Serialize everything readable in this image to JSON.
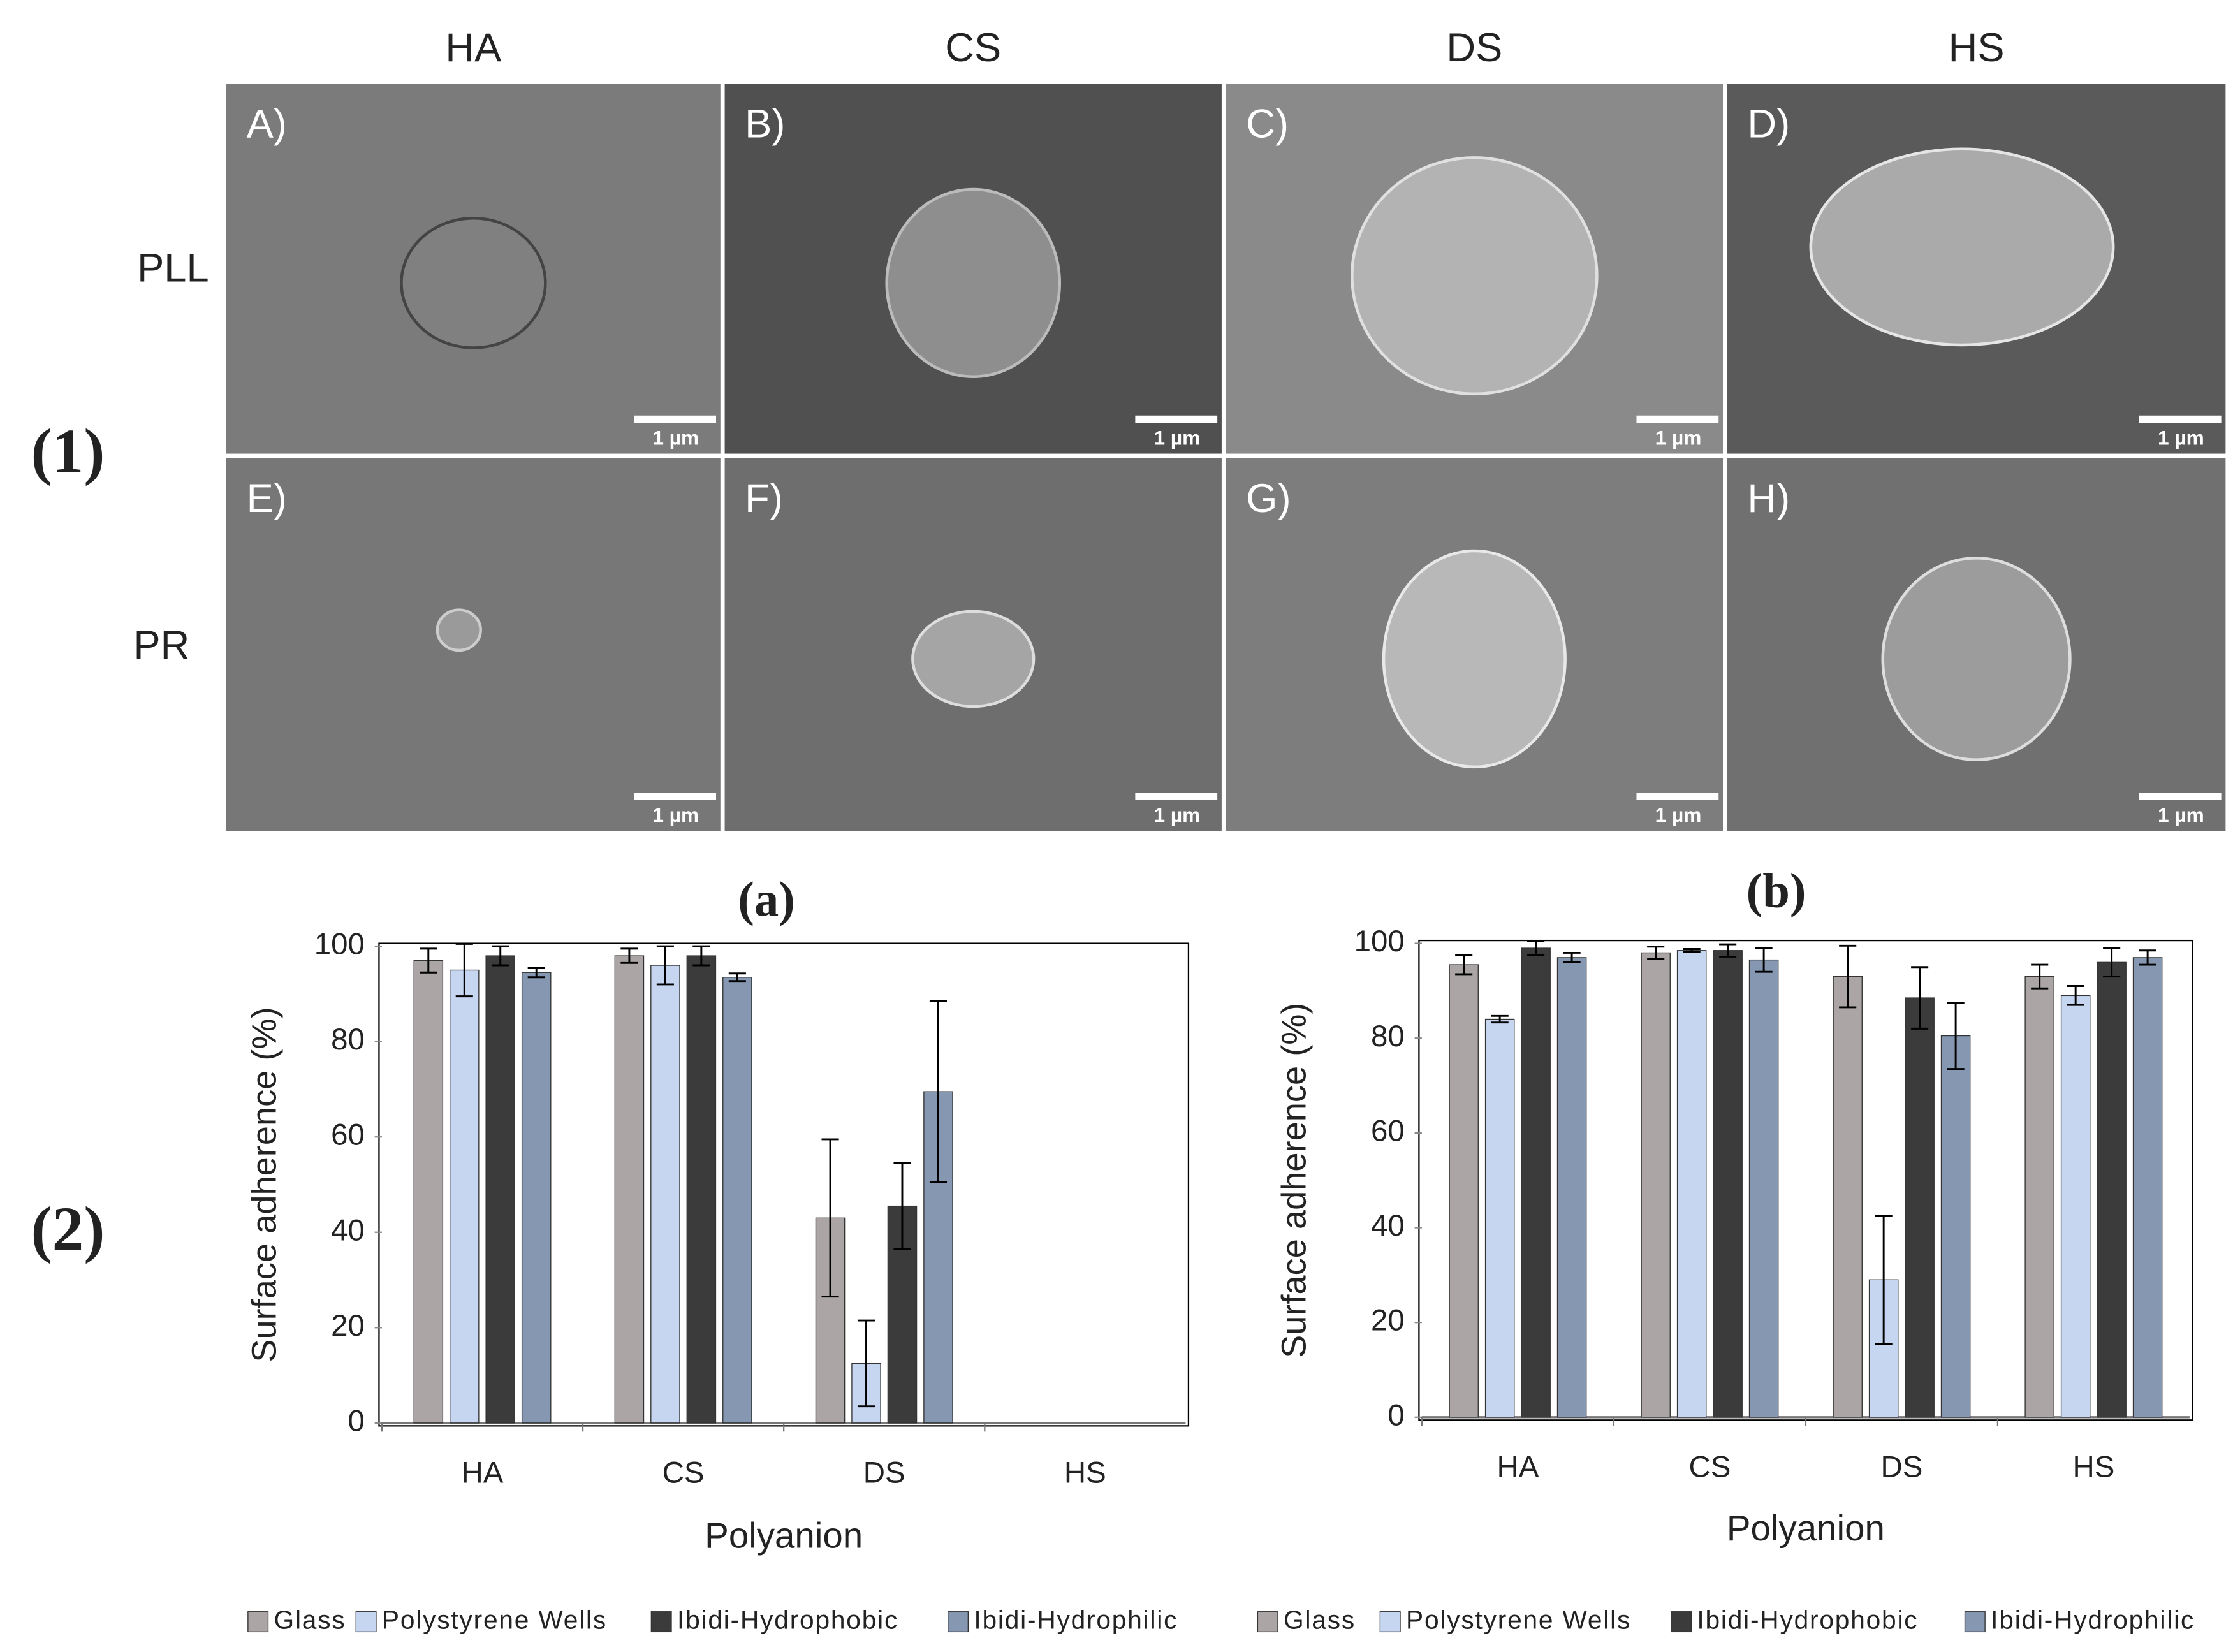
{
  "figure": {
    "labels": [
      "(1)",
      "(2)"
    ],
    "columns": [
      "HA",
      "CS",
      "DS",
      "HS"
    ],
    "rows": [
      "PLL",
      "PR"
    ],
    "panels": [
      "A)",
      "B)",
      "C)",
      "D)",
      "E)",
      "F)",
      "G)",
      "H)"
    ],
    "scale_bars": [
      "1 µm",
      "1 µm",
      "1 µm",
      "1 µm",
      "1 µm",
      "1 µm",
      "1 µm",
      "1 µm"
    ]
  },
  "chart_data": [
    {
      "type": "bar",
      "title": "(a)",
      "x_label": "Polyanion",
      "y_label": "Surface adherence (%)",
      "categories": [
        "HA",
        "CS",
        "DS",
        "HS"
      ],
      "ylim": [
        0,
        100
      ],
      "yticks": [
        0,
        20,
        40,
        60,
        80,
        100
      ],
      "legend": "bottom",
      "series": [
        {
          "name": "Glass",
          "color": "#aba5a5",
          "values": [
            97,
            98,
            43,
            null
          ],
          "errors": [
            2.5,
            1.5,
            16.5,
            null
          ]
        },
        {
          "name": "Polystyrene Wells",
          "color": "#c6d6f1",
          "values": [
            95,
            96,
            12.5,
            null
          ],
          "errors": [
            5.5,
            4,
            9,
            null
          ]
        },
        {
          "name": "Ibidi-Hydrophobic",
          "color": "#3b3b3b",
          "values": [
            98,
            98,
            45.5,
            null
          ],
          "errors": [
            2,
            2,
            9,
            null
          ]
        },
        {
          "name": "Ibidi-Hydrophilic",
          "color": "#8597b1",
          "values": [
            94.5,
            93.5,
            69.5,
            null
          ],
          "errors": [
            1,
            0.8,
            19,
            null
          ]
        }
      ]
    },
    {
      "type": "bar",
      "title": "(b)",
      "x_label": "Polyanion",
      "y_label": "Surface adherence (%)",
      "categories": [
        "HA",
        "CS",
        "DS",
        "HS"
      ],
      "ylim": [
        0,
        100
      ],
      "yticks": [
        0,
        20,
        40,
        60,
        80,
        100
      ],
      "legend": "bottom",
      "series": [
        {
          "name": "Glass",
          "color": "#aba5a5",
          "values": [
            95.5,
            98,
            93,
            93
          ],
          "errors": [
            2,
            1.3,
            6.5,
            2.5
          ]
        },
        {
          "name": "Polystyrene Wells",
          "color": "#c6d6f1",
          "values": [
            84,
            98.5,
            29,
            89
          ],
          "errors": [
            0.7,
            0.3,
            13.5,
            2
          ]
        },
        {
          "name": "Ibidi-Hydrophobic",
          "color": "#3b3b3b",
          "values": [
            99,
            98.5,
            88.5,
            96
          ],
          "errors": [
            1.5,
            1.3,
            6.5,
            3
          ]
        },
        {
          "name": "Ibidi-Hydrophilic",
          "color": "#8597b1",
          "values": [
            97,
            96.5,
            80.5,
            97
          ],
          "errors": [
            1,
            2.5,
            7,
            1.5
          ]
        }
      ]
    }
  ]
}
